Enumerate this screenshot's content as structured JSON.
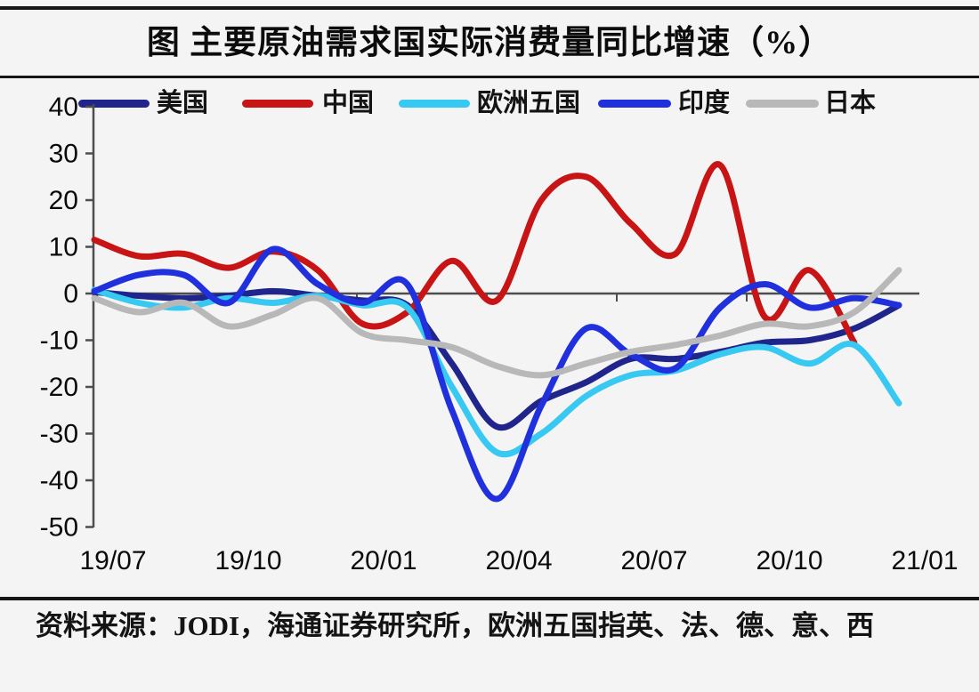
{
  "title": "图  主要原油需求国实际消费量同比增速（%）",
  "source_note": "资料来源：JODI，海通证券研究所，欧洲五国指英、法、德、意、西",
  "colors": {
    "us": "#20258c",
    "china": "#c81414",
    "europe5": "#38c9f2",
    "india": "#2030dd",
    "japan": "#b8b8b8",
    "axis": "#4d4d4d",
    "text": "#0a0a0a",
    "divider": "#161616",
    "background": "#f4f4f4"
  },
  "chart_data": {
    "type": "line",
    "title": "图  主要原油需求国实际消费量同比增速（%）",
    "xlabel": "",
    "ylabel": "",
    "ylim": [
      -50,
      40
    ],
    "y_ticks": [
      40,
      30,
      20,
      10,
      0,
      -10,
      -20,
      -30,
      -40,
      -50
    ],
    "grid": false,
    "zero_line": true,
    "legend_position": "top",
    "x": [
      "19/07",
      "19/08",
      "19/09",
      "19/10",
      "19/11",
      "19/12",
      "20/01",
      "20/02",
      "20/03",
      "20/04",
      "20/05",
      "20/06",
      "20/07",
      "20/08",
      "20/09",
      "20/10",
      "20/11",
      "20/12",
      "21/01"
    ],
    "x_tick_labels": [
      "19/07",
      "19/10",
      "20/01",
      "20/04",
      "20/07",
      "20/10",
      "21/01"
    ],
    "series": [
      {
        "id": "us",
        "name": "美国",
        "color": "#20258c",
        "values": [
          0.3,
          -0.5,
          -1,
          -0.5,
          0.5,
          -0.5,
          -1.5,
          -2.5,
          -15,
          -28.5,
          -23,
          -19,
          -14,
          -14,
          -12.5,
          -10.5,
          -10,
          -7.5,
          -2.5
        ]
      },
      {
        "id": "china",
        "name": "中国",
        "color": "#c81414",
        "values": [
          11.5,
          8,
          8.5,
          5.5,
          9,
          5,
          -6.5,
          -4,
          7,
          -1.5,
          20,
          25,
          15,
          8.5,
          27.5,
          -5,
          5,
          -10.5,
          null
        ]
      },
      {
        "id": "europe5",
        "name": "欧洲五国",
        "color": "#38c9f2",
        "values": [
          0.8,
          -2,
          -3,
          -1,
          -2,
          -0.5,
          -2.5,
          -3,
          -20,
          -34,
          -30,
          -22,
          -17.5,
          -16.5,
          -13,
          -11.5,
          -15,
          -11,
          -23.5
        ]
      },
      {
        "id": "india",
        "name": "印度",
        "color": "#2030dd",
        "values": [
          0.5,
          4,
          4,
          -2,
          9.5,
          2,
          -2,
          2,
          -25,
          -44,
          -24,
          -7.5,
          -13,
          -16,
          -3,
          2,
          -3,
          -1,
          -2.5
        ]
      },
      {
        "id": "japan",
        "name": "日本",
        "color": "#b8b8b8",
        "values": [
          -1,
          -4,
          -2,
          -7,
          -4.5,
          -1,
          -8.5,
          -10,
          -11.5,
          -15.5,
          -17.5,
          -15,
          -12.5,
          -11,
          -9,
          -6.5,
          -7,
          -4,
          5
        ]
      }
    ]
  }
}
